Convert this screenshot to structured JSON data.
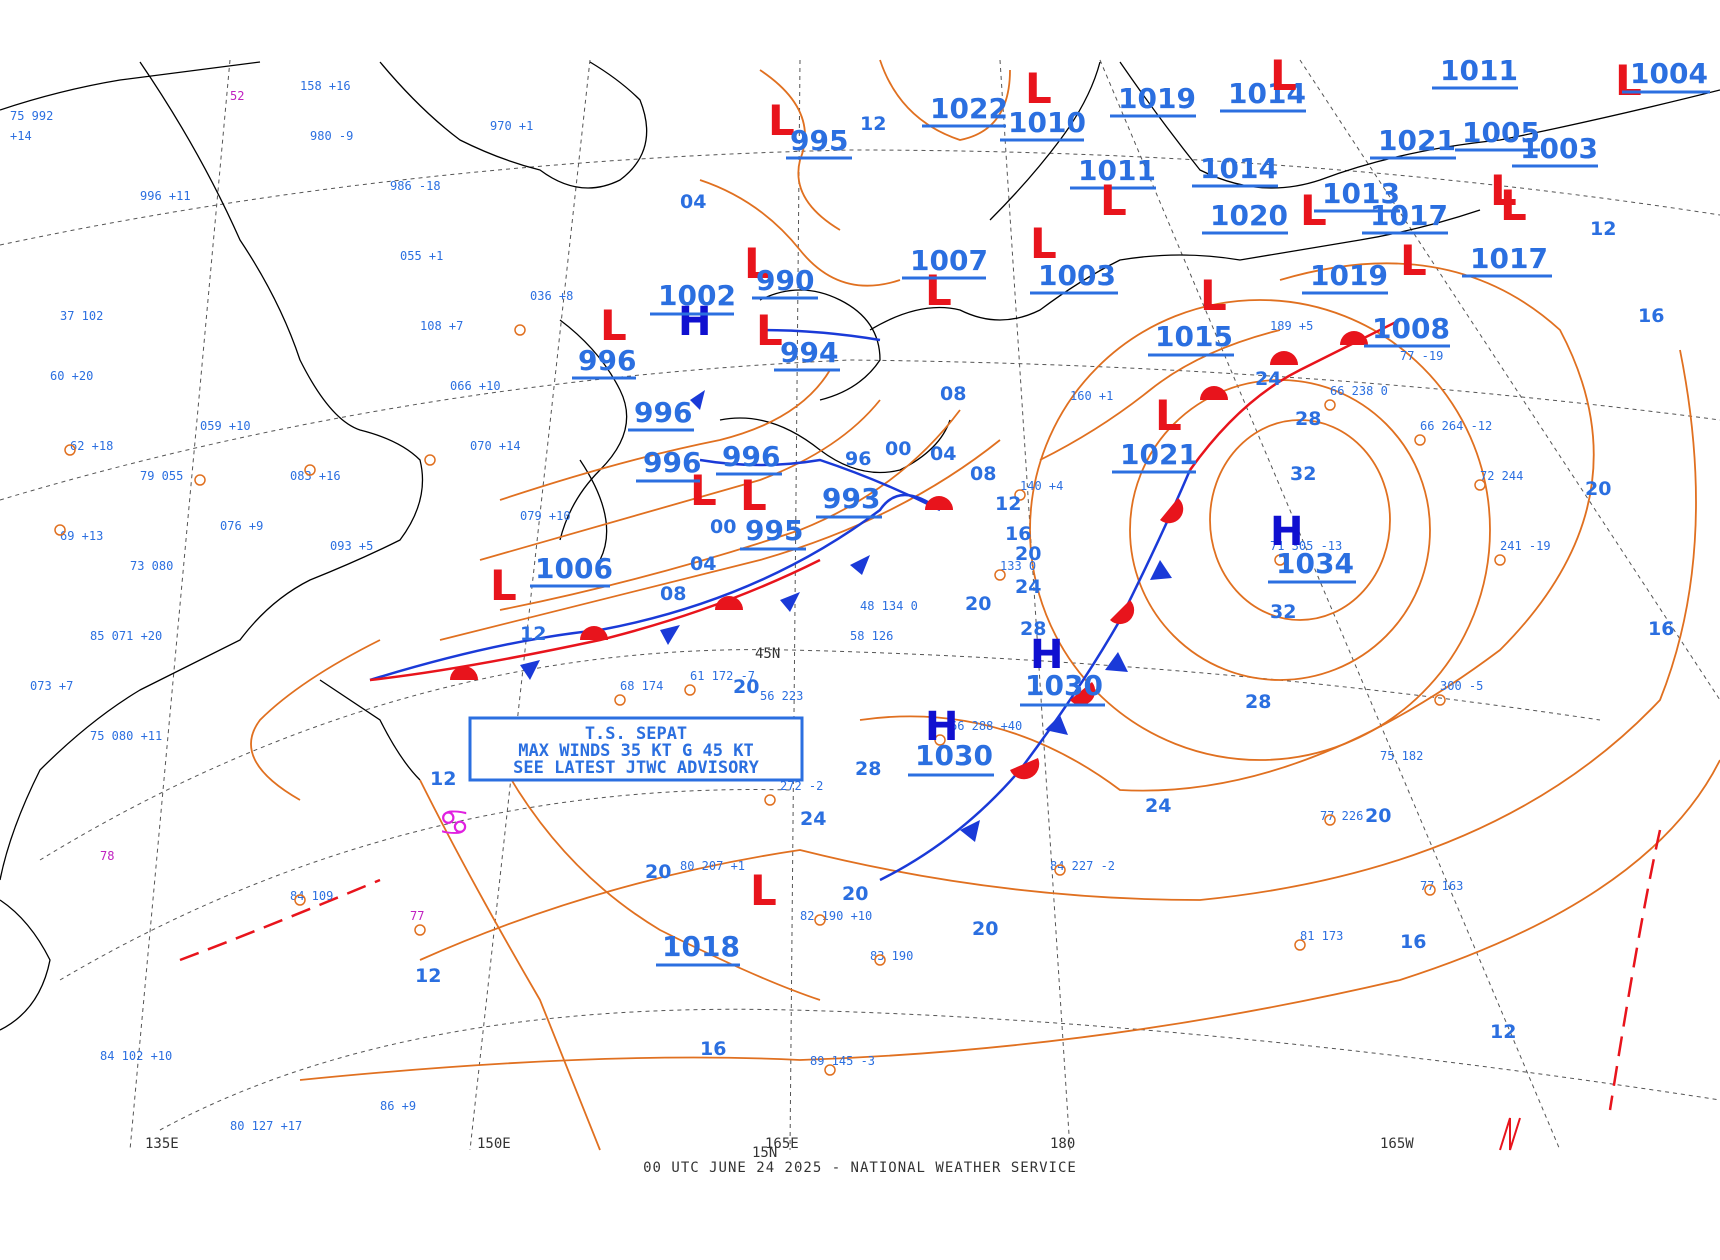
{
  "footer": "00 UTC JUNE 24 2025 - NATIONAL WEATHER SERVICE",
  "colors": {
    "isobar": "#e07020",
    "label": "#2b6fe0",
    "low": "#e8141c",
    "high": "#1010d0",
    "cold_front": "#1a3ad8",
    "warm_front": "#e8141c",
    "grid": "#555555"
  },
  "advisory": {
    "line1": "T.S. SEPAT",
    "line2": "MAX WINDS 35 KT G 45 KT",
    "line3": "SEE LATEST JTWC ADVISORY"
  },
  "axis_labels": [
    "135E",
    "150E",
    "165E",
    "180",
    "165W",
    "15N",
    "45N"
  ],
  "highs": [
    {
      "p": "1034"
    },
    {
      "p": "1030"
    },
    {
      "p": "1030"
    },
    {
      "p": "1002"
    }
  ],
  "lows": [
    {
      "p": "995"
    },
    {
      "p": "990"
    },
    {
      "p": "994"
    },
    {
      "p": "996"
    },
    {
      "p": "996"
    },
    {
      "p": "996"
    },
    {
      "p": "996"
    },
    {
      "p": "993"
    },
    {
      "p": "995"
    },
    {
      "p": "1006"
    },
    {
      "p": "1018"
    },
    {
      "p": "1021"
    },
    {
      "p": "1015"
    },
    {
      "p": "1003"
    },
    {
      "p": "1007"
    },
    {
      "p": "1010"
    },
    {
      "p": "1022"
    },
    {
      "p": "1019"
    },
    {
      "p": "1014"
    },
    {
      "p": "1021"
    },
    {
      "p": "1011"
    },
    {
      "p": "1005"
    },
    {
      "p": "1004"
    },
    {
      "p": "1011"
    },
    {
      "p": "1014"
    },
    {
      "p": "1020"
    },
    {
      "p": "1013"
    },
    {
      "p": "1017"
    },
    {
      "p": "1019"
    },
    {
      "p": "1017"
    },
    {
      "p": "1008"
    },
    {
      "p": "1003"
    }
  ],
  "isobar_labels": [
    "12",
    "16",
    "20",
    "24",
    "28",
    "32",
    "08",
    "04",
    "00",
    "96",
    "20",
    "24",
    "28",
    "16",
    "12"
  ]
}
